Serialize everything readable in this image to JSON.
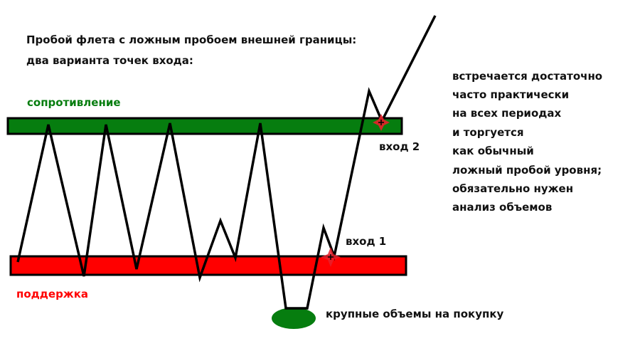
{
  "title_lines": [
    "Пробой флета с ложным пробоем внешней границы:",
    "два варианта точек входа:"
  ],
  "resistance_label": "сопротивление",
  "support_label": "поддержка",
  "entry1_label": "вход 1",
  "entry2_label": "вход 2",
  "volume_label": "крупные объемы на покупку",
  "note_lines": [
    "встречается достаточно",
    "часто практически",
    "на всех периодах",
    "и торгуется",
    "как обычный",
    "ложный пробой уровня;",
    "обязательно нужен",
    "анализ объемов"
  ],
  "colors": {
    "resistance": "#067d0f",
    "support": "#ff0000",
    "entry_marker": "#e8202a",
    "volume_ellipse": "#067d0f"
  }
}
